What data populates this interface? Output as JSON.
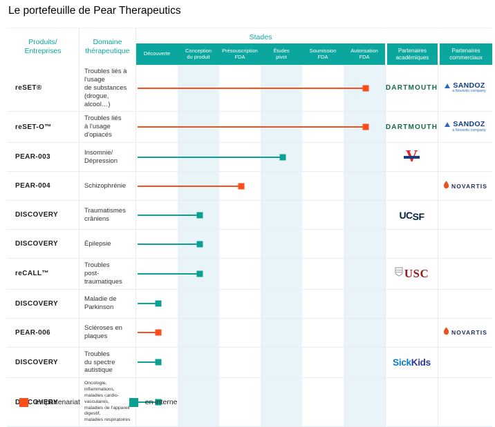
{
  "title": "Le portefeuille de Pear Therapeutics",
  "header": {
    "products": "Produits/\nEntreprises",
    "domain": "Domaine\nthérapeutique",
    "stages_group": "Stades",
    "stages": [
      "Découverte",
      "Conception\ndu produit",
      "Présouscription\nFDA",
      "Études\npivot",
      "Soumission\nFDA",
      "Autorisation\nFDA"
    ],
    "academic": "Partenaires\nacadémiques",
    "commercial": "Partenaires\ncommerciaux"
  },
  "chart_data": {
    "type": "gantt",
    "stage_axis": [
      "Découverte",
      "Conception du produit",
      "Présouscription FDA",
      "Études pivot",
      "Soumission FDA",
      "Autorisation FDA"
    ],
    "rows": [
      {
        "product": "reSET®",
        "domain": "Troubles liés à l'usage\nde substances\n(drogue, alcool…)",
        "stage_reached": 6,
        "mode": "partenariat",
        "academic": "dartmouth",
        "commercial": "sandoz"
      },
      {
        "product": "reSET-O™",
        "domain": "Troubles liés\nà l'usage d'opiacés",
        "stage_reached": 6,
        "mode": "partenariat",
        "academic": "dartmouth",
        "commercial": "sandoz"
      },
      {
        "product": "PEAR-003",
        "domain": "Insomnie/\nDépression",
        "stage_reached": 4,
        "mode": "interne",
        "academic": "virginia_v",
        "commercial": ""
      },
      {
        "product": "PEAR-004",
        "domain": "Schizophrénie",
        "stage_reached": 3,
        "mode": "partenariat",
        "academic": "",
        "commercial": "novartis"
      },
      {
        "product": "DISCOVERY",
        "domain": "Traumatismes\ncrâniens",
        "stage_reached": 2,
        "mode": "interne",
        "academic": "ucsf",
        "commercial": ""
      },
      {
        "product": "DISCOVERY",
        "domain": "Épilepsie",
        "stage_reached": 2,
        "mode": "interne",
        "academic": "",
        "commercial": ""
      },
      {
        "product": "reCALL™",
        "domain": "Troubles\npost-traumatiques",
        "stage_reached": 2,
        "mode": "interne",
        "academic": "usc",
        "commercial": ""
      },
      {
        "product": "DISCOVERY",
        "domain": "Maladie de\nParkinson",
        "stage_reached": 1,
        "mode": "interne",
        "academic": "",
        "commercial": ""
      },
      {
        "product": "PEAR-006",
        "domain": "Scléroses en plaques",
        "stage_reached": 1,
        "mode": "partenariat",
        "academic": "",
        "commercial": "novartis"
      },
      {
        "product": "DISCOVERY",
        "domain": "Troubles\ndu spectre autistique",
        "stage_reached": 1,
        "mode": "interne",
        "academic": "sickkids",
        "commercial": ""
      },
      {
        "product": "DISCOVERY",
        "domain": "Oncologie, inflammations,\nmaladies cardio-vasculaires,\nmaladies de l'appareil digestif,\nmaladies respiratoires",
        "stage_reached": 1,
        "mode": "interne",
        "academic": "",
        "commercial": ""
      }
    ]
  },
  "logos": {
    "dartmouth": {
      "text": "DARTMOUTH"
    },
    "sandoz": {
      "word": "SANDOZ",
      "tagline": "a Novartis company"
    },
    "virginia_v": {
      "text": "V"
    },
    "novartis": {
      "word": "NOVARTIS"
    },
    "ucsf": {
      "part1": "UC",
      "part2": "SF"
    },
    "usc": {
      "word": "USC"
    },
    "sickkids": {
      "part1": "Sick",
      "part2": "Kids"
    }
  },
  "legend": [
    {
      "label": "en partenariat",
      "color": "#fa4e1b"
    },
    {
      "label": "en interne",
      "color": "#0ca093"
    }
  ],
  "colors": {
    "partenariat": "#fa4e1b",
    "interne": "#0ca093",
    "band": "#0ba69d",
    "stripe": "#e9f4f8"
  }
}
